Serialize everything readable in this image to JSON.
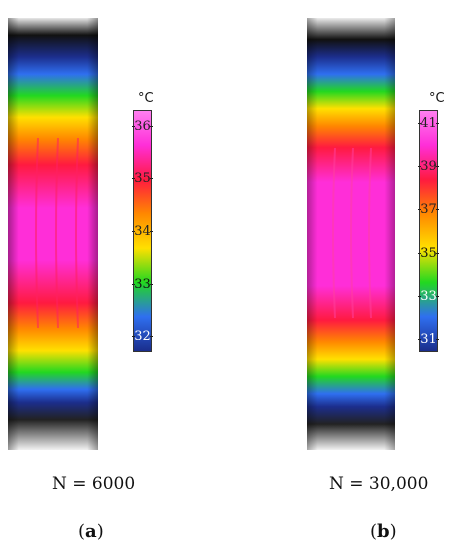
{
  "figure": {
    "panels": [
      {
        "id": "a",
        "caption": "N = 6000",
        "sublabel_open": "(",
        "sublabel_letter": "a",
        "sublabel_close": ")",
        "colorbar": {
          "unit": "°C",
          "min": 31.7,
          "max": 36.3,
          "ticks": [
            "36",
            "35",
            "34",
            "33",
            "32"
          ],
          "colors": [
            "#ff7ff0",
            "#ff2ed8",
            "#ff1a40",
            "#ff8800",
            "#ffe000",
            "#22d820",
            "#2f6ff0",
            "#1a2d8c"
          ]
        }
      },
      {
        "id": "b",
        "caption": "N = 30,000",
        "sublabel_open": "(",
        "sublabel_letter": "b",
        "sublabel_close": ")",
        "colorbar": {
          "unit": "°C",
          "min": 30.4,
          "max": 41.6,
          "ticks": [
            "41",
            "39",
            "37",
            "35",
            "33",
            "31"
          ],
          "colors": [
            "#ff7ff0",
            "#ff2ed8",
            "#ff1a40",
            "#ff8800",
            "#ffe000",
            "#22d820",
            "#2f6ff0",
            "#1a2d8c"
          ]
        }
      }
    ]
  }
}
